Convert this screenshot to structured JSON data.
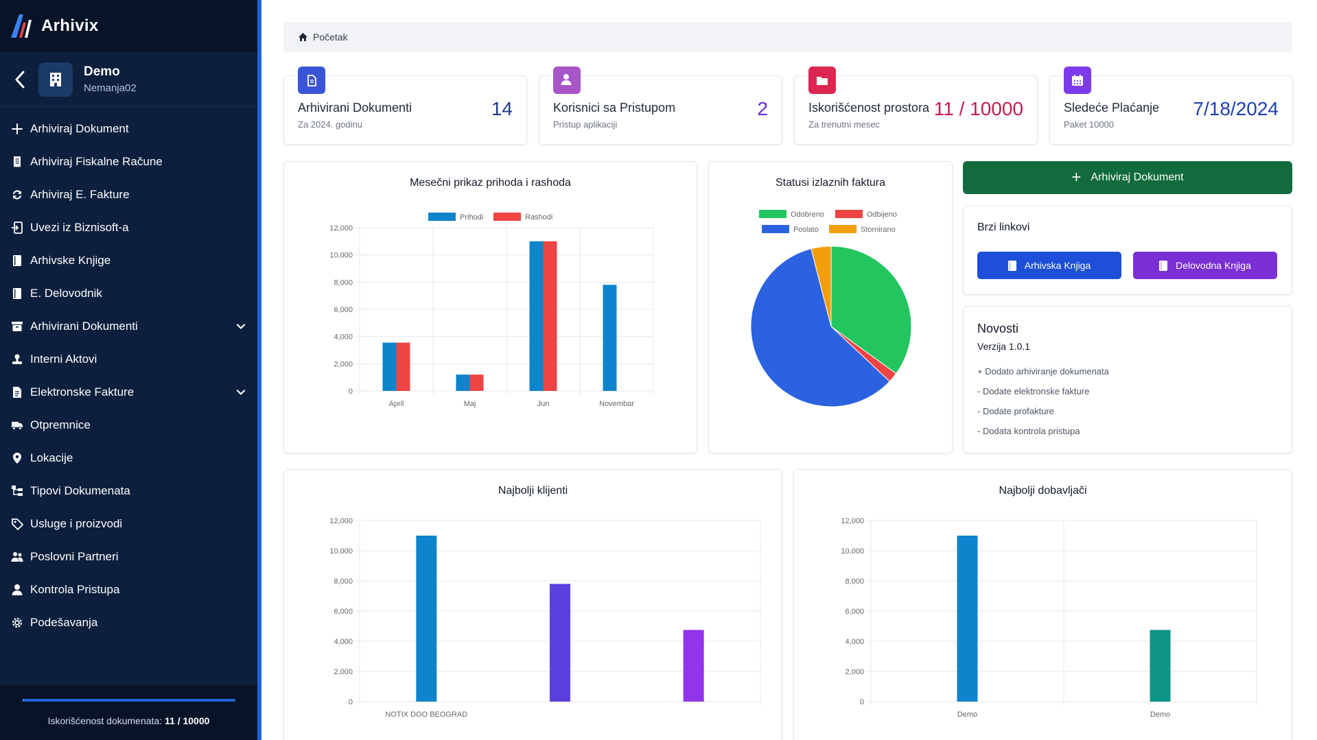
{
  "app": {
    "name": "Arhivix"
  },
  "org": {
    "name": "Demo",
    "user": "Nemanja02"
  },
  "sidebar": {
    "items": [
      {
        "label": "Arhiviraj Dokument",
        "icon": "plus-icon",
        "expandable": false
      },
      {
        "label": "Arhiviraj Fiskalne Račune",
        "icon": "receipt-icon",
        "expandable": false
      },
      {
        "label": "Arhiviraj E. Fakture",
        "icon": "sync-icon",
        "expandable": false
      },
      {
        "label": "Uvezi iz Biznisoft-a",
        "icon": "import-icon",
        "expandable": false
      },
      {
        "label": "Arhivske Knjige",
        "icon": "book-icon",
        "expandable": false
      },
      {
        "label": "E. Delovodnik",
        "icon": "book-icon",
        "expandable": false
      },
      {
        "label": "Arhivirani Dokumenti",
        "icon": "archive-icon",
        "expandable": true
      },
      {
        "label": "Interni Aktovi",
        "icon": "stamp-icon",
        "expandable": false
      },
      {
        "label": "Elektronske Fakture",
        "icon": "invoice-icon",
        "expandable": true
      },
      {
        "label": "Otpremnice",
        "icon": "truck-icon",
        "expandable": false
      },
      {
        "label": "Lokacije",
        "icon": "location-pin-icon",
        "expandable": false
      },
      {
        "label": "Tipovi Dokumenata",
        "icon": "sitemap-icon",
        "expandable": false
      },
      {
        "label": "Usluge i proizvodi",
        "icon": "tag-icon",
        "expandable": false
      },
      {
        "label": "Poslovni Partneri",
        "icon": "users-icon",
        "expandable": false
      },
      {
        "label": "Kontrola Pristupa",
        "icon": "user-icon",
        "expandable": false
      },
      {
        "label": "Podešavanja",
        "icon": "gear-icon",
        "expandable": false
      }
    ],
    "usage_label": "Iskorišćenost dokumenata:",
    "usage_value": "11 / 10000",
    "usage_fraction": 0.0011
  },
  "breadcrumb": {
    "label": "Početak"
  },
  "stats": [
    {
      "title": "Arhivirani Dokumenti",
      "subtitle": "Za 2024. godinu",
      "value": "14",
      "icon": "document-icon",
      "icon_color": "#3b55d9",
      "value_color": "#1e3a8a"
    },
    {
      "title": "Korisnici sa Pristupom",
      "subtitle": "Pristup aplikaciji",
      "value": "2",
      "icon": "user-icon",
      "icon_color": "#a855c7",
      "value_color": "#6d28d9"
    },
    {
      "title": "Iskorišćenost prostora",
      "subtitle": "Za trenutni mesec",
      "value": "11 / 10000",
      "icon": "folder-icon",
      "icon_color": "#dc2651",
      "value_color": "#be1d4a"
    },
    {
      "title": "Sledeće Plaćanje",
      "subtitle": "Paket 10000",
      "value": "7/18/2024",
      "icon": "calendar-icon",
      "icon_color": "#7c3aed",
      "value_color": "#1e40af"
    }
  ],
  "actions": {
    "archive_label": "Arhiviraj Dokument"
  },
  "quick_links": {
    "title": "Brzi linkovi",
    "buttons": [
      {
        "label": "Arhivska Knjiga",
        "color": "#1d4fd8"
      },
      {
        "label": "Delovodna Knjiga",
        "color": "#7a2fd4"
      }
    ]
  },
  "news": {
    "title": "Novosti",
    "version": "Verzija 1.0.1",
    "items": [
      "+ Dodato arhiviranje dokumenata",
      "- Dodate elektronske fakture",
      "- Dodate profakture",
      "- Dodata kontrola pristupa"
    ]
  },
  "chart_data": [
    {
      "type": "bar",
      "title": "Mesečni prikaz prihoda i rashoda",
      "categories": [
        "April",
        "Maj",
        "Jun",
        "Novembar"
      ],
      "series": [
        {
          "name": "Prihodi",
          "values": [
            3550,
            1200,
            11000,
            7800
          ],
          "color": "#0d84cc"
        },
        {
          "name": "Rashodi",
          "values": [
            3550,
            1200,
            11000,
            0
          ],
          "color": "#ef4444"
        }
      ],
      "ylim": [
        0,
        12000
      ],
      "yticks": [
        0,
        2000,
        4000,
        6000,
        8000,
        10000,
        12000
      ],
      "ytick_labels": [
        "0",
        "2,000",
        "4,000",
        "6,000",
        "8,000",
        "10,000",
        "12,000"
      ],
      "legend": "top-center",
      "grid": true
    },
    {
      "type": "pie",
      "title": "Statusi izlaznih faktura",
      "labels": [
        "Odobreno",
        "Odbijeno",
        "Poslato",
        "Stornirano"
      ],
      "values": [
        35,
        2,
        59,
        4
      ],
      "colors": [
        "#22c55e",
        "#ef4444",
        "#2b62e0",
        "#f59e0b"
      ],
      "legend": "top-center"
    },
    {
      "type": "bar",
      "title": "Najbolji klijenti",
      "categories": [
        "NOTIX DOO BEOGRAD",
        "",
        ""
      ],
      "values": [
        11000,
        7800,
        4750
      ],
      "colors": [
        "#0d84cc",
        "#5b3fe0",
        "#9333ea"
      ],
      "ylim": [
        0,
        12000
      ],
      "yticks": [
        0,
        2000,
        4000,
        6000,
        8000,
        10000,
        12000
      ],
      "ytick_labels": [
        "0",
        "2,000",
        "4,000",
        "6,000",
        "8,000",
        "10,000",
        "12,000"
      ],
      "grid": true
    },
    {
      "type": "bar",
      "title": "Najbolji dobavljači",
      "categories": [
        "Demo",
        "Demo"
      ],
      "values": [
        11000,
        4750
      ],
      "colors": [
        "#0d84cc",
        "#0f9488"
      ],
      "ylim": [
        0,
        12000
      ],
      "yticks": [
        0,
        2000,
        4000,
        6000,
        8000,
        10000,
        12000
      ],
      "ytick_labels": [
        "0",
        "2,000",
        "4,000",
        "6,000",
        "8,000",
        "10,000",
        "12,000"
      ],
      "grid": true
    }
  ]
}
